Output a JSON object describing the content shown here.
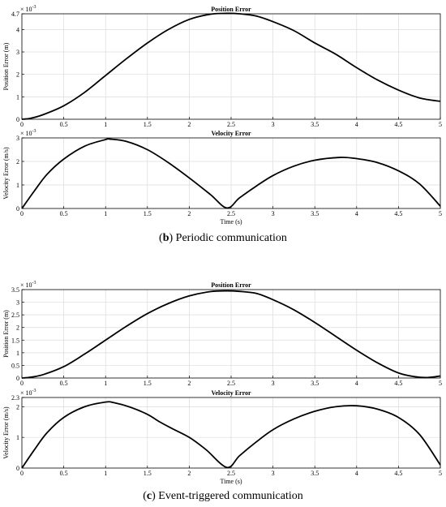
{
  "captions": {
    "b_letter": "b",
    "b_text": ") Periodic communication",
    "c_letter": "c",
    "c_text": ") Event-triggered communication"
  },
  "chart_data": [
    {
      "type": "line",
      "group": "b",
      "title": "Position Error",
      "xlabel": "",
      "ylabel": "Position Error (m)",
      "multiplier": "× 10-3",
      "xlim": [
        0,
        5
      ],
      "ylim": [
        0,
        4.7
      ],
      "xticks": [
        0,
        0.5,
        1,
        1.5,
        2,
        2.5,
        3,
        3.5,
        4,
        4.5,
        5
      ],
      "yticks": [
        0,
        1,
        2,
        3,
        4,
        4.7
      ],
      "ytick_labels": [
        "0",
        "1",
        "2",
        "3",
        "4",
        "4.7"
      ],
      "grid": true,
      "series": [
        {
          "x": [
            0,
            0.1,
            0.25,
            0.5,
            0.75,
            1,
            1.25,
            1.5,
            1.75,
            2,
            2.25,
            2.45,
            2.6,
            2.8,
            3,
            3.25,
            3.5,
            3.75,
            4,
            4.25,
            4.5,
            4.75,
            5
          ],
          "y": [
            0,
            0.04,
            0.2,
            0.6,
            1.2,
            1.95,
            2.7,
            3.4,
            4.0,
            4.45,
            4.68,
            4.72,
            4.7,
            4.6,
            4.35,
            3.95,
            3.4,
            2.9,
            2.3,
            1.75,
            1.3,
            0.95,
            0.8
          ]
        }
      ]
    },
    {
      "type": "line",
      "group": "b",
      "title": "Velocity Error",
      "xlabel": "Time (s)",
      "ylabel": "Velocity Error (m/s)",
      "multiplier": "× 10-3",
      "xlim": [
        0,
        5
      ],
      "ylim": [
        0,
        3
      ],
      "xticks": [
        0,
        0.5,
        1,
        1.5,
        2,
        2.5,
        3,
        3.5,
        4,
        4.5,
        5
      ],
      "yticks": [
        0,
        1,
        2,
        3
      ],
      "ytick_labels": [
        "0",
        "1",
        "2",
        "3"
      ],
      "grid": true,
      "series": [
        {
          "x": [
            0,
            0.15,
            0.3,
            0.5,
            0.75,
            1,
            1.05,
            1.25,
            1.5,
            1.75,
            2,
            2.25,
            2.45,
            2.6,
            2.8,
            3,
            3.25,
            3.5,
            3.8,
            4,
            4.25,
            4.5,
            4.75,
            5
          ],
          "y": [
            0,
            0.75,
            1.45,
            2.1,
            2.65,
            2.93,
            2.95,
            2.85,
            2.5,
            1.95,
            1.3,
            0.6,
            0.02,
            0.45,
            0.95,
            1.4,
            1.8,
            2.05,
            2.17,
            2.12,
            1.95,
            1.6,
            1.05,
            0.1
          ]
        }
      ]
    },
    {
      "type": "line",
      "group": "c",
      "title": "Position Error",
      "xlabel": "",
      "ylabel": "Position Error (m)",
      "multiplier": "× 10-3",
      "xlim": [
        0,
        5
      ],
      "ylim": [
        0,
        3.5
      ],
      "xticks": [
        0,
        0.5,
        1,
        1.5,
        2,
        2.5,
        3,
        3.5,
        4,
        4.5,
        5
      ],
      "yticks": [
        0,
        0.5,
        1,
        1.5,
        2,
        2.5,
        3,
        3.5
      ],
      "ytick_labels": [
        "0",
        "0.5",
        "1",
        "1.5",
        "2",
        "2.5",
        "3",
        "3.5"
      ],
      "grid": true,
      "series": [
        {
          "x": [
            0,
            0.1,
            0.25,
            0.5,
            0.75,
            1,
            1.25,
            1.5,
            1.75,
            2,
            2.25,
            2.45,
            2.6,
            2.8,
            3,
            3.25,
            3.5,
            3.75,
            4,
            4.25,
            4.5,
            4.7,
            4.85,
            5
          ],
          "y": [
            0,
            0.03,
            0.13,
            0.45,
            0.95,
            1.5,
            2.05,
            2.55,
            2.95,
            3.25,
            3.42,
            3.45,
            3.43,
            3.35,
            3.1,
            2.7,
            2.2,
            1.65,
            1.1,
            0.6,
            0.2,
            0.05,
            0.02,
            0.08
          ]
        }
      ]
    },
    {
      "type": "line",
      "group": "c",
      "title": "Velocity Error",
      "xlabel": "Time (s)",
      "ylabel": "Velocity Error (m/s)",
      "multiplier": "× 10-3",
      "xlim": [
        0,
        5
      ],
      "ylim": [
        0,
        2.3
      ],
      "xticks": [
        0,
        0.5,
        1,
        1.5,
        2,
        2.5,
        3,
        3.5,
        4,
        4.5,
        5
      ],
      "yticks": [
        0,
        1,
        2,
        2.3
      ],
      "ytick_labels": [
        "0",
        "1",
        "2",
        "2.3"
      ],
      "grid": true,
      "series": [
        {
          "x": [
            0,
            0.15,
            0.3,
            0.5,
            0.75,
            1,
            1.1,
            1.3,
            1.5,
            1.65,
            1.8,
            2,
            2.2,
            2.45,
            2.6,
            2.8,
            3,
            3.25,
            3.5,
            3.75,
            4,
            4.25,
            4.5,
            4.75,
            5
          ],
          "y": [
            0,
            0.6,
            1.15,
            1.65,
            2.0,
            2.15,
            2.13,
            1.98,
            1.75,
            1.5,
            1.28,
            1.0,
            0.6,
            0.02,
            0.4,
            0.85,
            1.25,
            1.6,
            1.85,
            2.0,
            2.03,
            1.92,
            1.65,
            1.1,
            0.1
          ]
        }
      ]
    }
  ]
}
